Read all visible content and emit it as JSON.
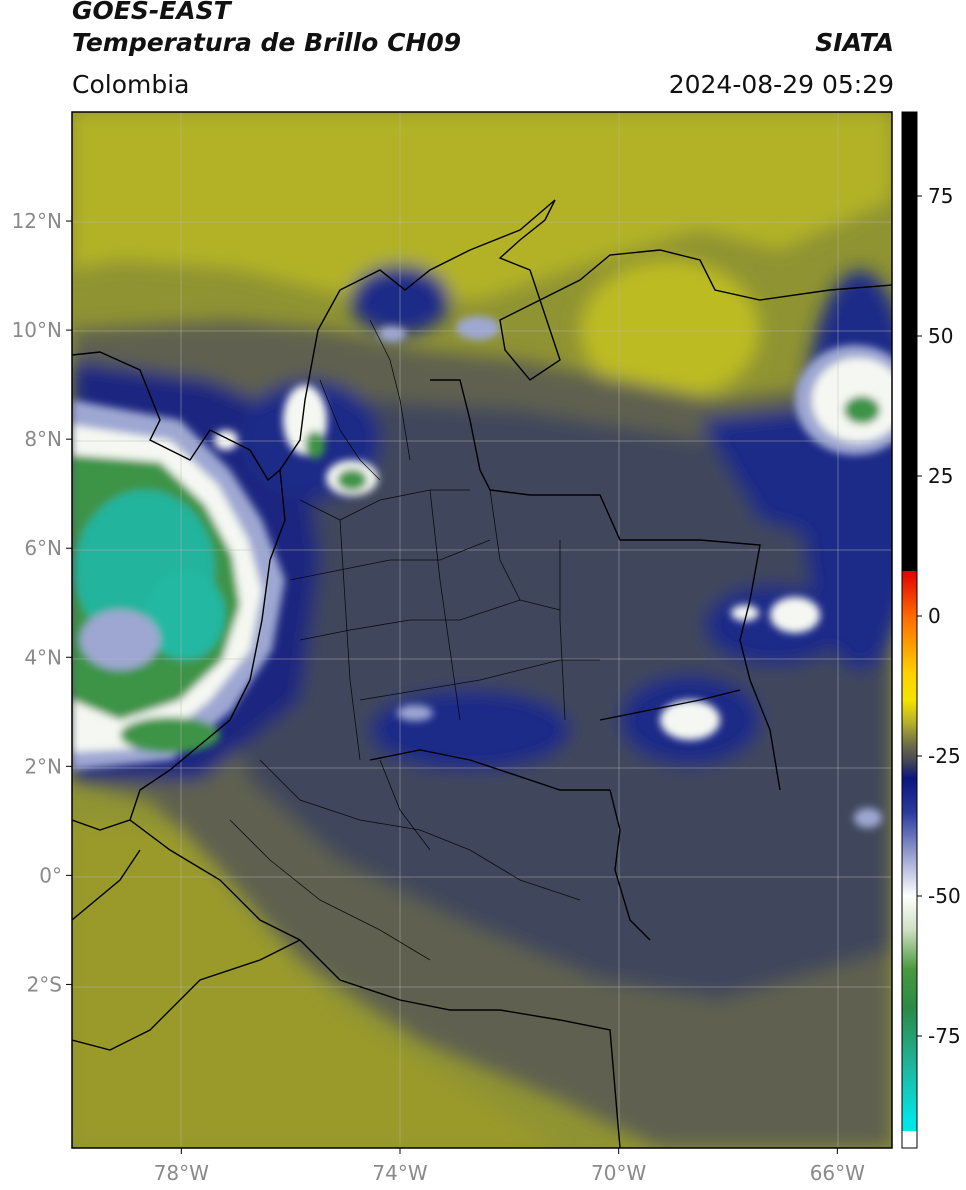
{
  "header": {
    "satellite": "GOES-EAST",
    "product": "Temperatura de Brillo CH09",
    "organization": "SIATA",
    "region": "Colombia",
    "datetime": "2024-08-29 05:29"
  },
  "map": {
    "lon_range": [
      -80,
      -65
    ],
    "lat_range": [
      -5,
      14
    ],
    "lat_ticks": [
      {
        "value": 12,
        "label": "12°N"
      },
      {
        "value": 10,
        "label": "10°N"
      },
      {
        "value": 8,
        "label": "8°N"
      },
      {
        "value": 6,
        "label": "6°N"
      },
      {
        "value": 4,
        "label": "4°N"
      },
      {
        "value": 2,
        "label": "2°N"
      },
      {
        "value": 0,
        "label": "0°"
      },
      {
        "value": -2,
        "label": "2°S"
      }
    ],
    "lon_ticks": [
      {
        "value": -78,
        "label": "78°W"
      },
      {
        "value": -74,
        "label": "74°W"
      },
      {
        "value": -70,
        "label": "70°W"
      },
      {
        "value": -66,
        "label": "66°W"
      }
    ],
    "grid": true,
    "colors": {
      "background": "#8f9332",
      "warm_yellow": "#b3b226",
      "mid_gray": "#5f6050",
      "slate": "#41465c",
      "navy": "#1b2780",
      "lavender": "#9ea7d2",
      "white": "#f5f8f2",
      "green": "#3e9446",
      "teal": "#23b49c",
      "borders": "#000000"
    }
  },
  "colorbar": {
    "range": [
      -95,
      90
    ],
    "ticks": [
      75,
      50,
      25,
      0,
      -25,
      -50,
      -75
    ],
    "tick_labels": [
      "75",
      "50",
      "25",
      "0",
      "-25",
      "-50",
      "-75"
    ],
    "stops": [
      {
        "value": 90,
        "color": "#000000"
      },
      {
        "value": 8,
        "color": "#000000"
      },
      {
        "value": 8,
        "color": "#e00000"
      },
      {
        "value": 0,
        "color": "#ff6a00"
      },
      {
        "value": -10,
        "color": "#ffd000"
      },
      {
        "value": -15,
        "color": "#f5e400"
      },
      {
        "value": -19,
        "color": "#b5b12a"
      },
      {
        "value": -23,
        "color": "#6e6d46"
      },
      {
        "value": -26,
        "color": "#434557"
      },
      {
        "value": -29,
        "color": "#0c1580"
      },
      {
        "value": -35,
        "color": "#2a3a9c"
      },
      {
        "value": -43,
        "color": "#9ca5d2"
      },
      {
        "value": -50,
        "color": "#ffffff"
      },
      {
        "value": -56,
        "color": "#cfe0c4"
      },
      {
        "value": -63,
        "color": "#4a9a3e"
      },
      {
        "value": -70,
        "color": "#2b8a46"
      },
      {
        "value": -80,
        "color": "#1fb49a"
      },
      {
        "value": -90,
        "color": "#00e6e6"
      },
      {
        "value": -92,
        "color": "#00e6e6"
      },
      {
        "value": -92,
        "color": "#ffffff"
      },
      {
        "value": -95,
        "color": "#ffffff"
      }
    ]
  }
}
